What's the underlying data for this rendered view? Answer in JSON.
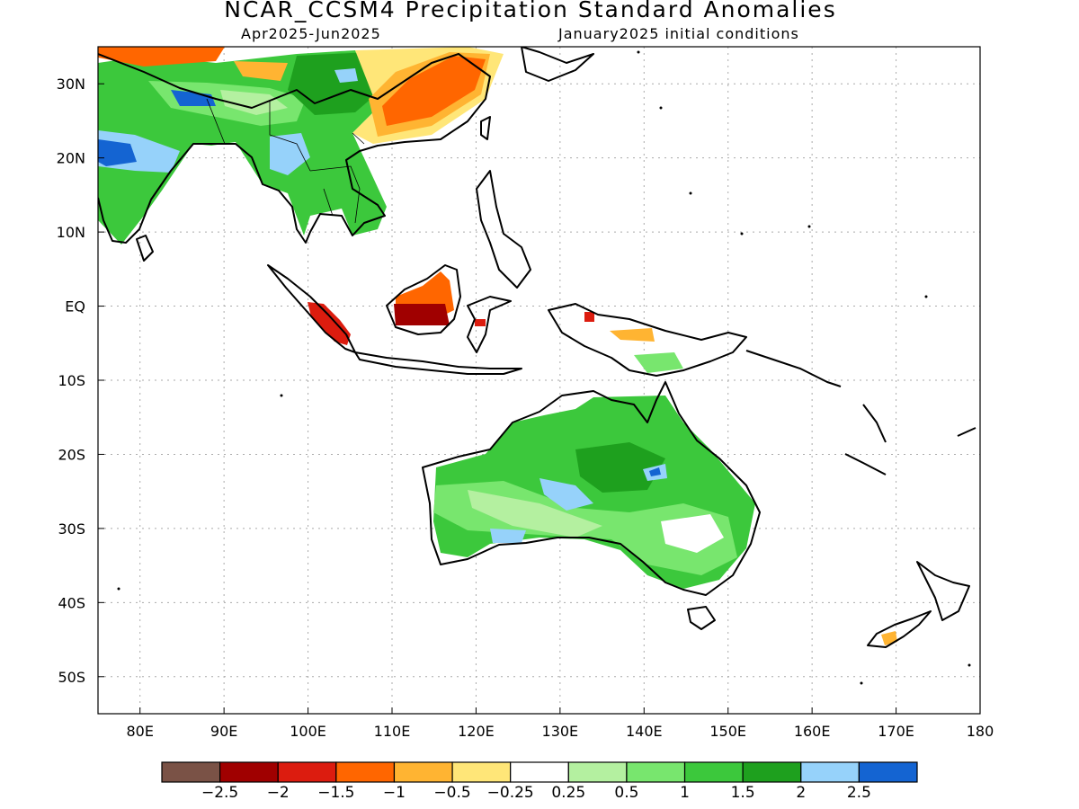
{
  "title": "NCAR_CCSM4 Precipitation Standard Anomalies",
  "subtitle_left": "Apr2025-Jun2025",
  "subtitle_right": "January2025 initial conditions",
  "map": {
    "lon_range": [
      75,
      180
    ],
    "lat_range": [
      -55,
      35
    ],
    "lat_ticks": [
      {
        "value": 30,
        "label": "30N"
      },
      {
        "value": 20,
        "label": "20N"
      },
      {
        "value": 10,
        "label": "10N"
      },
      {
        "value": 0,
        "label": "EQ"
      },
      {
        "value": -10,
        "label": "10S"
      },
      {
        "value": -20,
        "label": "20S"
      },
      {
        "value": -30,
        "label": "30S"
      },
      {
        "value": -40,
        "label": "40S"
      },
      {
        "value": -50,
        "label": "50S"
      }
    ],
    "lon_ticks": [
      {
        "value": 80,
        "label": "80E"
      },
      {
        "value": 90,
        "label": "90E"
      },
      {
        "value": 100,
        "label": "100E"
      },
      {
        "value": 110,
        "label": "110E"
      },
      {
        "value": 120,
        "label": "120E"
      },
      {
        "value": 130,
        "label": "130E"
      },
      {
        "value": 140,
        "label": "140E"
      },
      {
        "value": 150,
        "label": "150E"
      },
      {
        "value": 160,
        "label": "160E"
      },
      {
        "value": 170,
        "label": "170E"
      },
      {
        "value": 180,
        "label": "180"
      }
    ]
  },
  "colorbar": {
    "colors": [
      "#7a5246",
      "#a00000",
      "#dc1c0f",
      "#ff6600",
      "#ffb432",
      "#ffe678",
      "#ffffff",
      "#b4f0a0",
      "#78e66e",
      "#3cc83c",
      "#1ea01e",
      "#96d2fa",
      "#1464d2"
    ],
    "labels": [
      "-2.5",
      "-2",
      "-1.5",
      "-1",
      "-0.5",
      "-0.25",
      "0.25",
      "0.5",
      "1",
      "1.5",
      "2",
      "2.5"
    ]
  }
}
